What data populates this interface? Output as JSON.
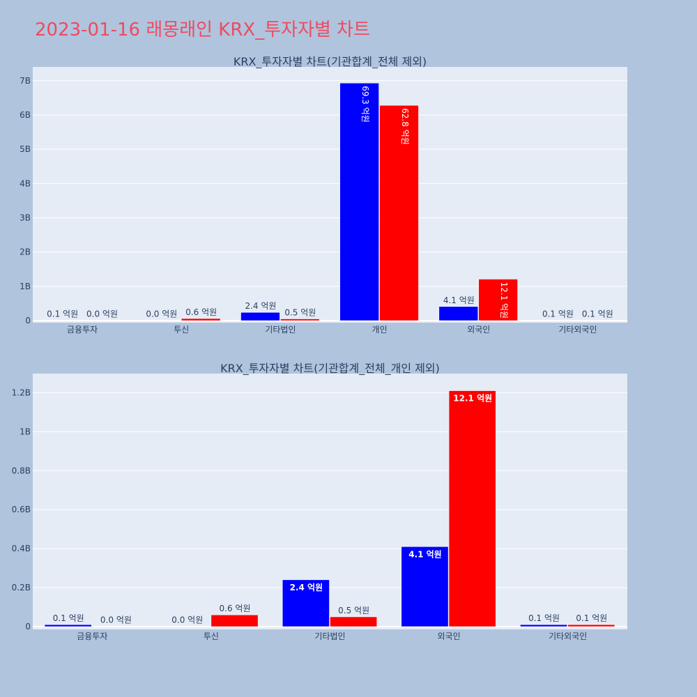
{
  "page_title": "2023-01-16 래몽래인 KRX_투자자별 차트",
  "colors": {
    "series_a": "#0000ff",
    "series_b": "#ff0000",
    "plot_bg": "#e5ecf6",
    "paper_bg": "#b0c4de",
    "title": "#ef4a5f"
  },
  "chart_data": [
    {
      "type": "bar",
      "title": "KRX_투자자별 차트(기관합계_전체 제외)",
      "categories": [
        "금융투자",
        "투신",
        "기타법인",
        "개인",
        "외국인",
        "기타외국인"
      ],
      "ylim": [
        0,
        7300000000.0
      ],
      "yticks": [
        0,
        1000000000.0,
        2000000000.0,
        3000000000.0,
        4000000000.0,
        5000000000.0,
        6000000000.0,
        7000000000.0
      ],
      "ytick_labels": [
        "0",
        "1B",
        "2B",
        "3B",
        "4B",
        "5B",
        "6B",
        "7B"
      ],
      "series": [
        {
          "name": "blue",
          "values": [
            10000000.0,
            0.0,
            240000000.0,
            6930000000.0,
            410000000.0,
            10000000.0
          ],
          "labels": [
            "0.1 억원",
            "0.0 억원",
            "2.4 억원",
            "69.3 억원",
            "4.1 억원",
            "0.1 억원"
          ]
        },
        {
          "name": "red",
          "values": [
            0.0,
            60000000.0,
            50000000.0,
            6280000000.0,
            1210000000.0,
            10000000.0
          ],
          "labels": [
            "0.0 억원",
            "0.6 억원",
            "0.5 억원",
            "62.8 억원",
            "12.1 억원",
            "0.1 억원"
          ]
        }
      ],
      "grid": true
    },
    {
      "type": "bar",
      "title": "KRX_투자자별 차트(기관합계_전체_개인 제외)",
      "categories": [
        "금융투자",
        "투신",
        "기타법인",
        "외국인",
        "기타외국인"
      ],
      "ylim": [
        0,
        1280000000.0
      ],
      "yticks": [
        0,
        200000000.0,
        400000000.0,
        600000000.0,
        800000000.0,
        1000000000.0,
        1200000000.0
      ],
      "ytick_labels": [
        "0",
        "0.2B",
        "0.4B",
        "0.6B",
        "0.8B",
        "1B",
        "1.2B"
      ],
      "series": [
        {
          "name": "blue",
          "values": [
            10000000.0,
            0.0,
            240000000.0,
            410000000.0,
            10000000.0
          ],
          "labels": [
            "0.1 억원",
            "0.0 억원",
            "2.4 억원",
            "4.1 억원",
            "0.1 억원"
          ]
        },
        {
          "name": "red",
          "values": [
            0.0,
            60000000.0,
            50000000.0,
            1210000000.0,
            10000000.0
          ],
          "labels": [
            "0.0 억원",
            "0.6 억원",
            "0.5 억원",
            "12.1 억원",
            "0.1 억원"
          ]
        }
      ],
      "grid": true
    }
  ]
}
